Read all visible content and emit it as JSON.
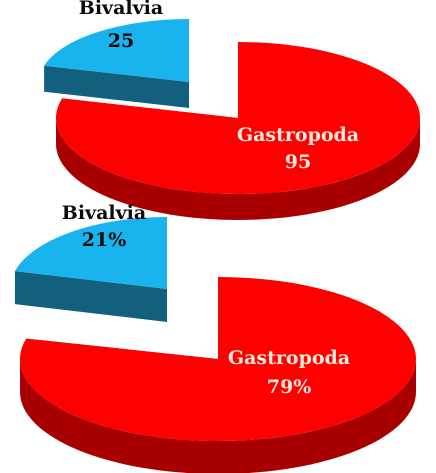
{
  "chart_data": [
    {
      "type": "pie",
      "categories": [
        "Bivalvia",
        "Gastropoda"
      ],
      "values": [
        25,
        95
      ],
      "data_labels": [
        "25",
        "95"
      ]
    },
    {
      "type": "pie",
      "categories": [
        "Bivalvia",
        "Gastropoda"
      ],
      "values": [
        21,
        79
      ],
      "data_labels": [
        "21%",
        "79%"
      ]
    }
  ],
  "colors": {
    "bivalvia_top": "#19b3ee",
    "bivalvia_side": "#12607e",
    "gastropoda_top": "#ff0000",
    "gastropoda_side": "#a80000",
    "label": "#0a0a0a",
    "label_on_red": "#fbe8dc"
  }
}
